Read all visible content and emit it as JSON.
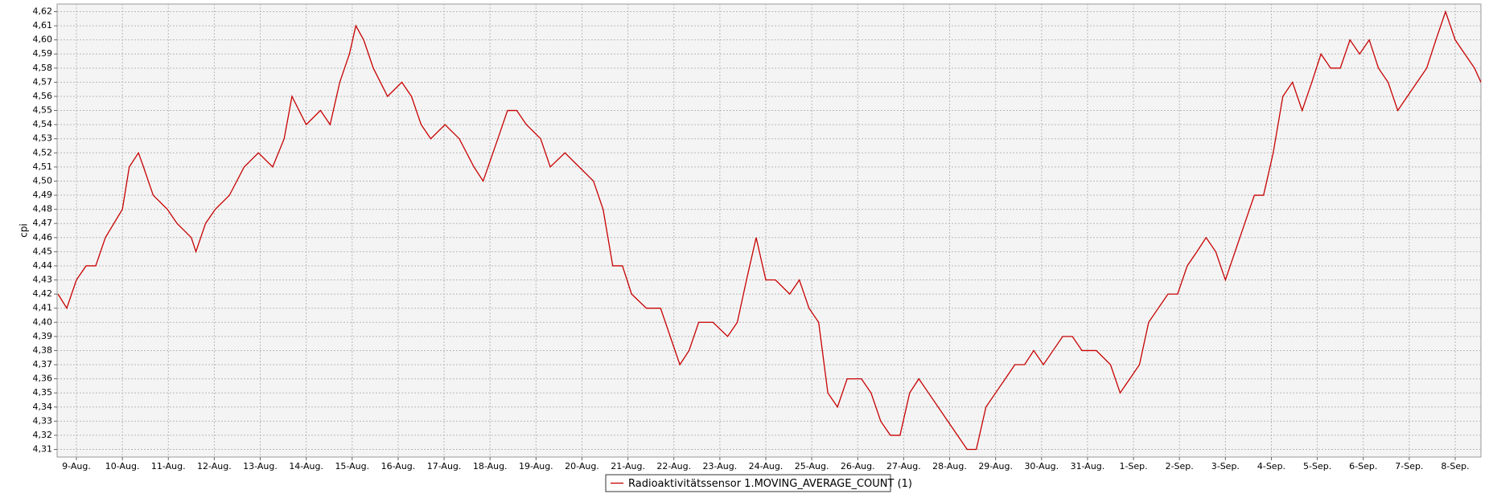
{
  "chart_data": {
    "type": "line",
    "y_label": "cpi",
    "x": [
      -0.4,
      -0.21,
      0,
      0.21,
      0.42,
      0.63,
      1.0,
      1.15,
      1.35,
      1.46,
      1.67,
      1.98,
      2.19,
      2.5,
      2.6,
      2.81,
      3.02,
      3.33,
      3.65,
      3.96,
      4.27,
      4.52,
      4.69,
      5.0,
      5.31,
      5.52,
      5.73,
      5.94,
      6.08,
      6.25,
      6.46,
      6.77,
      7.08,
      7.29,
      7.5,
      7.71,
      8.02,
      8.33,
      8.65,
      8.85,
      9.17,
      9.38,
      9.58,
      9.79,
      10.1,
      10.31,
      10.63,
      10.94,
      11.25,
      11.46,
      11.67,
      11.88,
      12.08,
      12.4,
      12.71,
      12.92,
      13.13,
      13.33,
      13.54,
      13.85,
      14.17,
      14.38,
      14.58,
      14.79,
      15.0,
      15.21,
      15.52,
      15.73,
      15.94,
      16.15,
      16.35,
      16.56,
      16.77,
      17.08,
      17.29,
      17.5,
      17.71,
      17.92,
      18.13,
      18.33,
      18.54,
      18.75,
      18.96,
      19.17,
      19.38,
      19.58,
      19.79,
      20.0,
      20.21,
      20.42,
      20.63,
      20.83,
      21.04,
      21.25,
      21.46,
      21.67,
      21.88,
      22.19,
      22.5,
      22.71,
      22.92,
      23.13,
      23.33,
      23.54,
      23.75,
      23.96,
      24.17,
      24.38,
      24.58,
      24.79,
      25.0,
      25.21,
      25.42,
      25.63,
      25.83,
      26.04,
      26.25,
      26.46,
      26.67,
      26.88,
      27.08,
      27.29,
      27.5,
      27.71,
      27.92,
      28.13,
      28.33,
      28.54,
      28.75,
      28.96,
      29.17,
      29.38,
      29.58,
      29.79,
      30.0,
      30.21,
      30.42,
      30.56
    ],
    "series": [
      {
        "name": "Radioaktivitätssensor 1.MOVING_AVERAGE_COUNT (1)",
        "color": "#c80000",
        "values": [
          4.42,
          4.41,
          4.43,
          4.44,
          4.44,
          4.46,
          4.48,
          4.51,
          4.52,
          4.51,
          4.49,
          4.48,
          4.47,
          4.46,
          4.45,
          4.47,
          4.48,
          4.49,
          4.51,
          4.52,
          4.51,
          4.53,
          4.56,
          4.54,
          4.55,
          4.54,
          4.57,
          4.59,
          4.61,
          4.6,
          4.58,
          4.56,
          4.57,
          4.56,
          4.54,
          4.53,
          4.54,
          4.53,
          4.51,
          4.5,
          4.53,
          4.55,
          4.55,
          4.54,
          4.53,
          4.51,
          4.52,
          4.51,
          4.5,
          4.48,
          4.44,
          4.44,
          4.42,
          4.41,
          4.41,
          4.39,
          4.37,
          4.38,
          4.4,
          4.4,
          4.39,
          4.4,
          4.43,
          4.46,
          4.43,
          4.43,
          4.42,
          4.43,
          4.41,
          4.4,
          4.35,
          4.34,
          4.36,
          4.36,
          4.35,
          4.33,
          4.32,
          4.32,
          4.35,
          4.36,
          4.35,
          4.34,
          4.33,
          4.32,
          4.31,
          4.31,
          4.34,
          4.35,
          4.36,
          4.37,
          4.37,
          4.38,
          4.37,
          4.38,
          4.39,
          4.39,
          4.38,
          4.38,
          4.37,
          4.35,
          4.36,
          4.37,
          4.4,
          4.41,
          4.42,
          4.42,
          4.44,
          4.45,
          4.46,
          4.45,
          4.43,
          4.45,
          4.47,
          4.49,
          4.49,
          4.52,
          4.56,
          4.57,
          4.55,
          4.57,
          4.59,
          4.58,
          4.58,
          4.6,
          4.59,
          4.6,
          4.58,
          4.57,
          4.55,
          4.56,
          4.57,
          4.58,
          4.6,
          4.62,
          4.6,
          4.59,
          4.58,
          4.57
        ]
      }
    ],
    "xlim": [
      -0.42,
      30.56
    ],
    "ylim": [
      4.3046,
      4.6254
    ],
    "xticks": [
      {
        "value": 0,
        "label": "9-Aug."
      },
      {
        "value": 1,
        "label": "10-Aug."
      },
      {
        "value": 2,
        "label": "11-Aug."
      },
      {
        "value": 3,
        "label": "12-Aug."
      },
      {
        "value": 4,
        "label": "13-Aug."
      },
      {
        "value": 5,
        "label": "14-Aug."
      },
      {
        "value": 6,
        "label": "15-Aug."
      },
      {
        "value": 7,
        "label": "16-Aug."
      },
      {
        "value": 8,
        "label": "17-Aug."
      },
      {
        "value": 9,
        "label": "18-Aug."
      },
      {
        "value": 10,
        "label": "19-Aug."
      },
      {
        "value": 11,
        "label": "20-Aug."
      },
      {
        "value": 12,
        "label": "21-Aug."
      },
      {
        "value": 13,
        "label": "22-Aug."
      },
      {
        "value": 14,
        "label": "23-Aug."
      },
      {
        "value": 15,
        "label": "24-Aug."
      },
      {
        "value": 16,
        "label": "25-Aug."
      },
      {
        "value": 17,
        "label": "26-Aug."
      },
      {
        "value": 18,
        "label": "27-Aug."
      },
      {
        "value": 19,
        "label": "28-Aug."
      },
      {
        "value": 20,
        "label": "29-Aug."
      },
      {
        "value": 21,
        "label": "30-Aug."
      },
      {
        "value": 22,
        "label": "31-Aug."
      },
      {
        "value": 23,
        "label": "1-Sep."
      },
      {
        "value": 24,
        "label": "2-Sep."
      },
      {
        "value": 25,
        "label": "3-Sep."
      },
      {
        "value": 26,
        "label": "4-Sep."
      },
      {
        "value": 27,
        "label": "5-Sep."
      },
      {
        "value": 28,
        "label": "6-Sep."
      },
      {
        "value": 29,
        "label": "7-Sep."
      },
      {
        "value": 30,
        "label": "8-Sep."
      }
    ],
    "yticks": [
      {
        "value": 4.31,
        "label": "4,31"
      },
      {
        "value": 4.32,
        "label": "4,32"
      },
      {
        "value": 4.33,
        "label": "4,33"
      },
      {
        "value": 4.34,
        "label": "4,34"
      },
      {
        "value": 4.35,
        "label": "4,35"
      },
      {
        "value": 4.36,
        "label": "4,36"
      },
      {
        "value": 4.37,
        "label": "4,37"
      },
      {
        "value": 4.38,
        "label": "4,38"
      },
      {
        "value": 4.39,
        "label": "4,39"
      },
      {
        "value": 4.4,
        "label": "4,40"
      },
      {
        "value": 4.41,
        "label": "4,41"
      },
      {
        "value": 4.42,
        "label": "4,42"
      },
      {
        "value": 4.43,
        "label": "4,43"
      },
      {
        "value": 4.44,
        "label": "4,44"
      },
      {
        "value": 4.45,
        "label": "4,45"
      },
      {
        "value": 4.46,
        "label": "4,46"
      },
      {
        "value": 4.47,
        "label": "4,47"
      },
      {
        "value": 4.48,
        "label": "4,48"
      },
      {
        "value": 4.49,
        "label": "4,49"
      },
      {
        "value": 4.5,
        "label": "4,50"
      },
      {
        "value": 4.51,
        "label": "4,51"
      },
      {
        "value": 4.52,
        "label": "4,52"
      },
      {
        "value": 4.53,
        "label": "4,53"
      },
      {
        "value": 4.54,
        "label": "4,54"
      },
      {
        "value": 4.55,
        "label": "4,55"
      },
      {
        "value": 4.56,
        "label": "4,56"
      },
      {
        "value": 4.57,
        "label": "4,57"
      },
      {
        "value": 4.58,
        "label": "4,58"
      },
      {
        "value": 4.59,
        "label": "4,59"
      },
      {
        "value": 4.6,
        "label": "4,60"
      },
      {
        "value": 4.61,
        "label": "4,61"
      },
      {
        "value": 4.62,
        "label": "4,62"
      }
    ],
    "grid": true,
    "legend": "bottom"
  }
}
